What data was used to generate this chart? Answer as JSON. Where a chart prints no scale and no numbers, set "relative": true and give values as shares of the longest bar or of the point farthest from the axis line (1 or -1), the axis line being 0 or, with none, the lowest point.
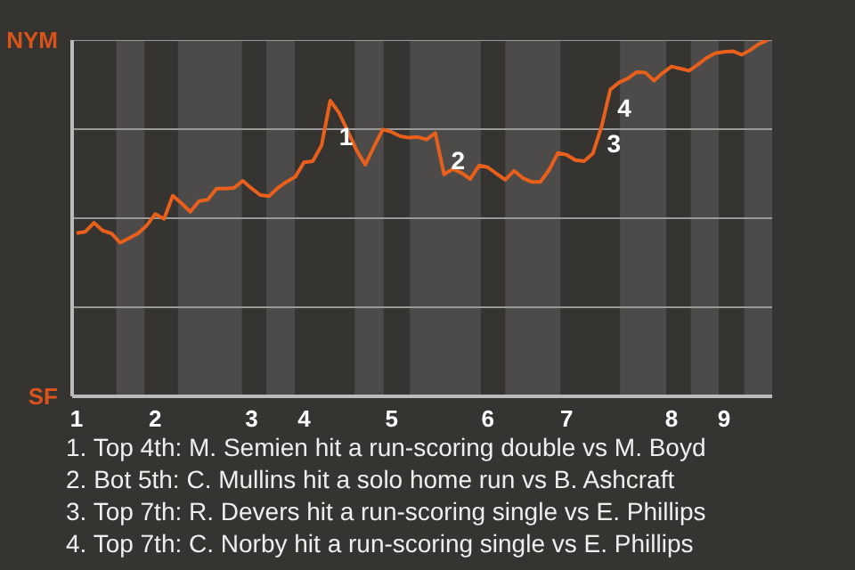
{
  "chart_data": {
    "type": "line",
    "relative": true,
    "categories": [
      "1",
      null,
      null,
      null,
      null,
      null,
      null,
      null,
      null,
      "2",
      null,
      null,
      null,
      null,
      null,
      null,
      null,
      null,
      null,
      null,
      "3",
      null,
      null,
      null,
      null,
      null,
      "4",
      null,
      null,
      null,
      null,
      null,
      null,
      null,
      null,
      null,
      "5",
      null,
      null,
      null,
      null,
      null,
      null,
      null,
      null,
      null,
      null,
      "6",
      null,
      null,
      null,
      null,
      null,
      null,
      null,
      null,
      "7",
      null,
      null,
      null,
      null,
      null,
      null,
      null,
      null,
      null,
      null,
      null,
      "8",
      null,
      null,
      null,
      null,
      null,
      "9",
      null,
      null,
      null,
      null,
      null
    ],
    "marker": "none",
    "line_style": "solid",
    "series": [
      {
        "color": "#e8601c",
        "values": [
          0.458,
          0.462,
          0.487,
          0.465,
          0.457,
          0.431,
          0.444,
          0.457,
          0.479,
          0.512,
          0.498,
          0.563,
          0.542,
          0.518,
          0.548,
          0.552,
          0.583,
          0.583,
          0.585,
          0.605,
          0.584,
          0.565,
          0.562,
          0.585,
          0.602,
          0.616,
          0.657,
          0.66,
          0.704,
          0.83,
          0.796,
          0.744,
          0.691,
          0.65,
          0.701,
          0.749,
          0.742,
          0.73,
          0.726,
          0.728,
          0.721,
          0.739,
          0.623,
          0.638,
          0.627,
          0.61,
          0.648,
          0.643,
          0.625,
          0.608,
          0.633,
          0.613,
          0.602,
          0.602,
          0.635,
          0.683,
          0.678,
          0.663,
          0.66,
          0.681,
          0.757,
          0.861,
          0.881,
          0.892,
          0.91,
          0.909,
          0.886,
          0.908,
          0.926,
          0.92,
          0.914,
          0.931,
          0.95,
          0.963,
          0.967,
          0.969,
          0.959,
          0.972,
          0.989,
          1.0
        ]
      }
    ],
    "annotations": [
      "NYM",
      "SF",
      "1",
      "2",
      "3",
      "4",
      "1. Top 4th: M. Semien hit a run-scoring double vs M. Boyd",
      "2. Bot 5th: C. Mullins hit a solo home run vs B. Ashcraft",
      "3. Top 7th: R. Devers hit a run-scoring single vs E. Phillips",
      "4. Top 7th: C. Norby hit a run-scoring single vs E. Phillips"
    ]
  }
}
